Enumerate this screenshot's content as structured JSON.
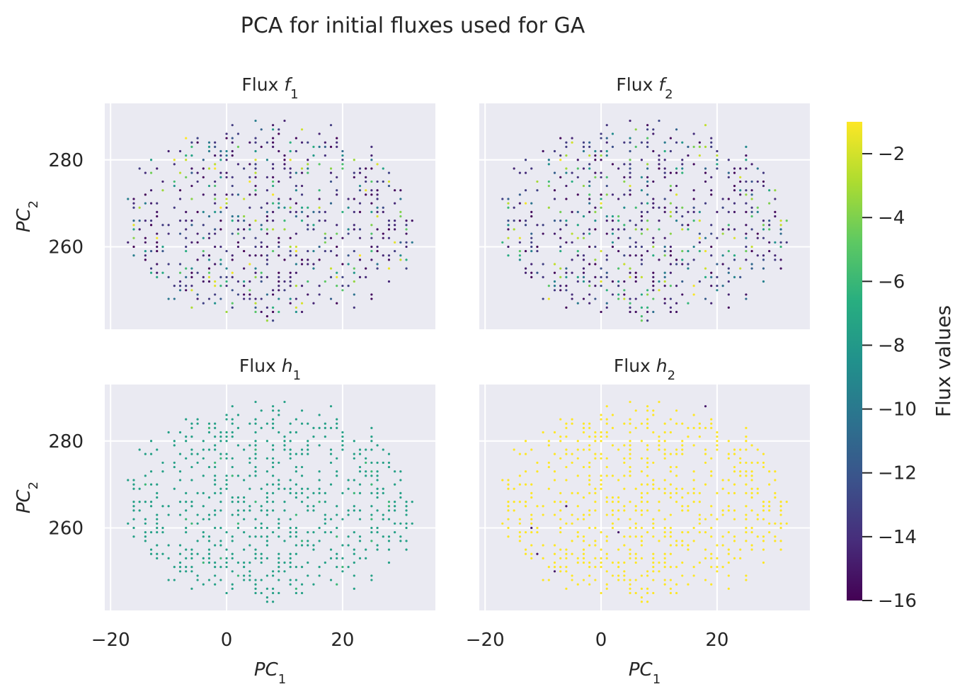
{
  "chart_data": {
    "type": "scatter",
    "title": "PCA for initial fluxes used for GA",
    "xlabel": "PC",
    "xlabel_sub": "1",
    "ylabel": "PC",
    "ylabel_sub": "2",
    "xlim": [
      -21,
      36
    ],
    "ylim": [
      241,
      293
    ],
    "xticks": [
      -20,
      0,
      20
    ],
    "yticks": [
      260,
      280
    ],
    "xtick_labels": [
      "−20",
      "0",
      "20"
    ],
    "ytick_labels": [
      "260",
      "280"
    ],
    "grid": true,
    "colormap": "viridis",
    "colorbar": {
      "label": "Flux values",
      "range": [
        -16,
        -1
      ],
      "ticks": [
        -2,
        -4,
        -6,
        -8,
        -10,
        -12,
        -14,
        -16
      ],
      "tick_labels": [
        "−2",
        "−4",
        "−6",
        "−8",
        "−10",
        "−12",
        "−14",
        "−16"
      ]
    },
    "panels": [
      {
        "name": "Flux f",
        "sub": "1",
        "flux": "f1"
      },
      {
        "name": "Flux f",
        "sub": "2",
        "flux": "f2"
      },
      {
        "name": "Flux h",
        "sub": "1",
        "flux": "h1"
      },
      {
        "name": "Flux h",
        "sub": "2",
        "flux": "h2"
      }
    ],
    "points": {
      "pc1_range": [
        -19,
        34
      ],
      "pc2_range": [
        243,
        291
      ],
      "approx_count": 680,
      "f1_values_range": [
        -16,
        -1
      ],
      "f2_values_range": [
        -16,
        -1
      ],
      "h1_values_typical": -7.5,
      "h2_values_typical": -1
    }
  }
}
